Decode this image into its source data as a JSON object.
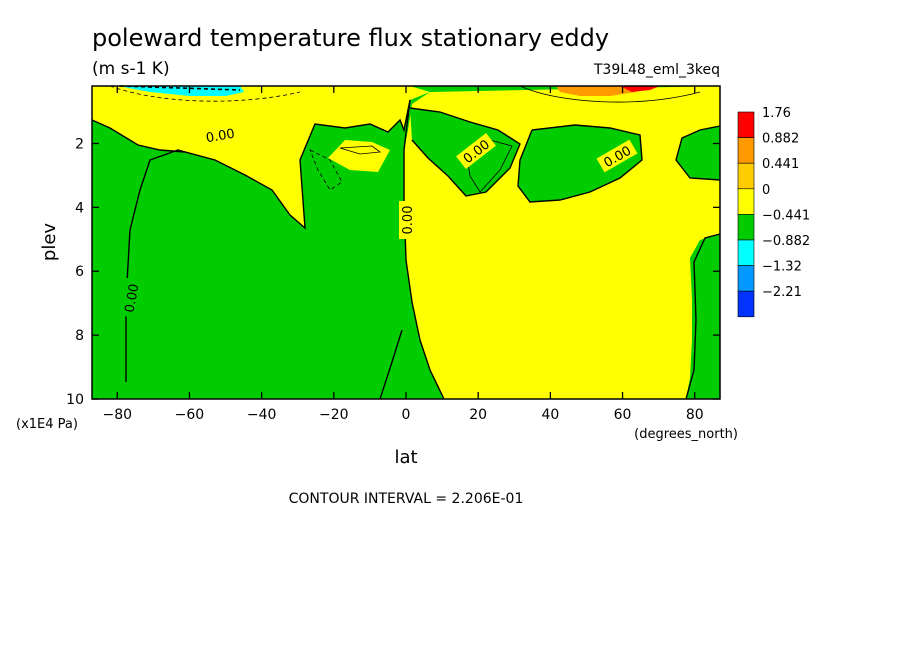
{
  "chart_data": {
    "type": "contour",
    "title": "poleward temperature flux stationary eddy",
    "units": "(m s-1 K)",
    "dataset": "T39L48_eml_3keq",
    "xlabel": "lat",
    "x_units": "(degrees_north)",
    "ylabel": "plev",
    "y_units": "(x1E4 Pa)",
    "xlim": [
      -87,
      87
    ],
    "ylim": [
      10,
      0.2
    ],
    "x_ticks": [
      -80,
      -60,
      -40,
      -20,
      0,
      20,
      40,
      60,
      80
    ],
    "x_tick_labels": [
      "−80",
      "−60",
      "−40",
      "−20",
      "0",
      "20",
      "40",
      "60",
      "80"
    ],
    "y_ticks": [
      2,
      4,
      6,
      8,
      10
    ],
    "y_tick_labels": [
      "2",
      "4",
      "6",
      "8",
      "10"
    ],
    "contour_labels": [
      "0.00",
      "0.00",
      "0.00",
      "0.00",
      "0.00"
    ],
    "contour_interval": "CONTOUR INTERVAL = 2.206E-01",
    "colorbar": {
      "labels": [
        "1.76",
        "0.882",
        "0.441",
        "0",
        "−0.441",
        "−0.882",
        "−1.32",
        "−2.21"
      ],
      "colors": [
        "#ff0000",
        "#ff9900",
        "#ffcc00",
        "#ffff00",
        "#00cc00",
        "#00ffff",
        "#0099ff",
        "#0033ff"
      ]
    },
    "fill_colors": {
      "positive": "#ffff00",
      "negative": "#00cc00",
      "strong_positive": "#ff9900",
      "strong_negative": "#00ffff"
    }
  }
}
